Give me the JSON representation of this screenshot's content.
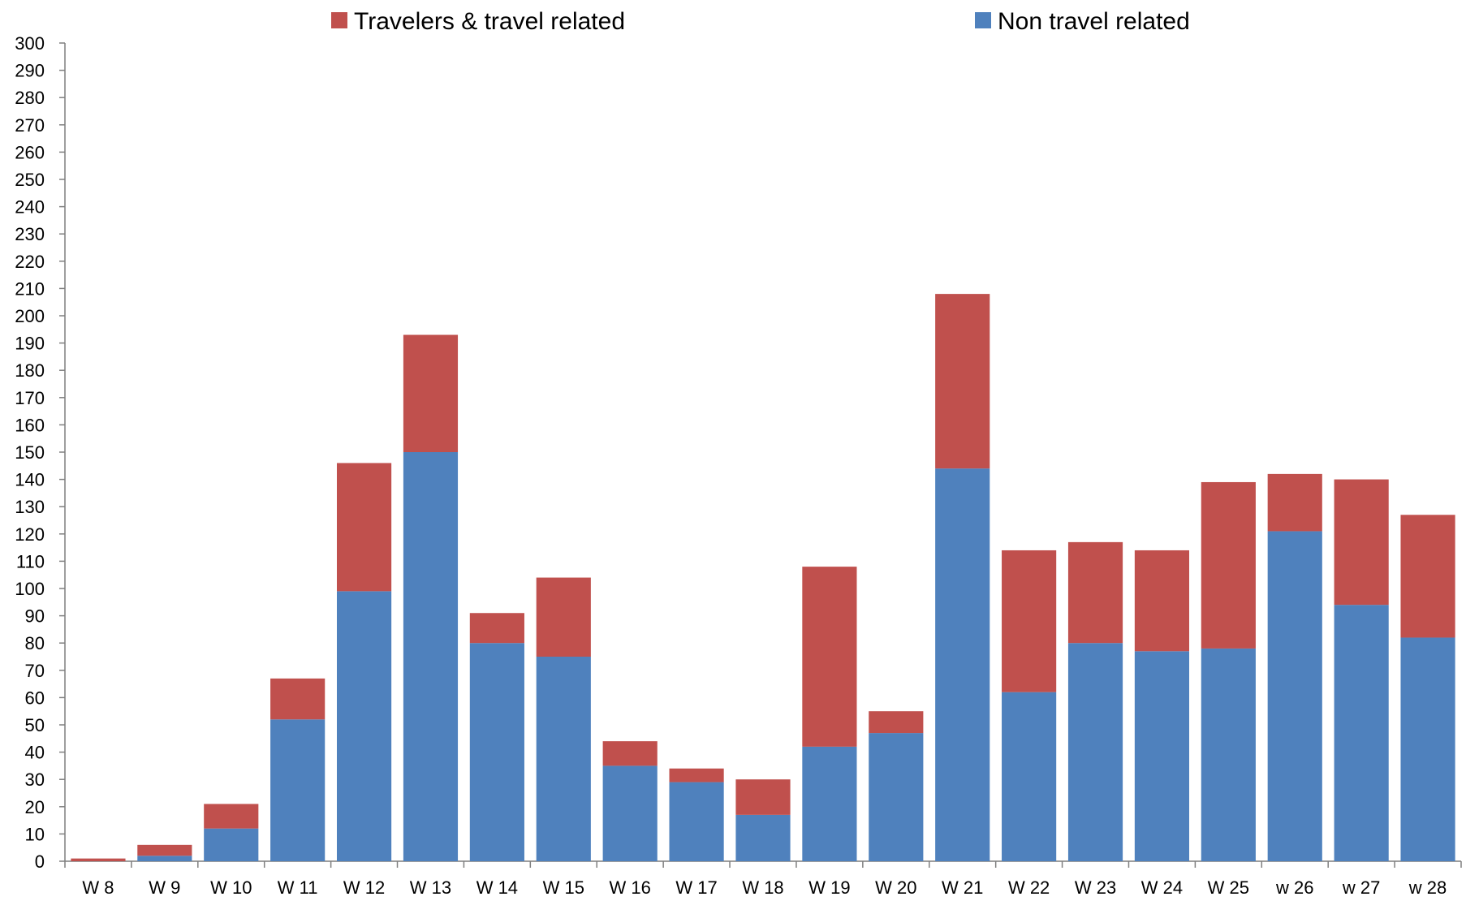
{
  "chart_data": {
    "type": "bar",
    "stacked": true,
    "title": "",
    "xlabel": "",
    "ylabel": "",
    "ylim": [
      0,
      300
    ],
    "y_tick_step": 10,
    "grid": false,
    "legend_position": "top",
    "categories": [
      "W 8",
      "W 9",
      "W 10",
      "W 11",
      "W 12",
      "W 13",
      "W 14",
      "W 15",
      "W 16",
      "W 17",
      "W 18",
      "W 19",
      "W 20",
      "W 21",
      "W 22",
      "W 23",
      "W 24",
      "W 25",
      "w 26",
      "w 27",
      "w 28"
    ],
    "series": [
      {
        "name": "Non travel related",
        "color": "#4F81BD",
        "values": [
          0,
          2,
          12,
          52,
          99,
          150,
          80,
          75,
          35,
          29,
          17,
          42,
          47,
          144,
          62,
          80,
          77,
          78,
          121,
          94,
          82
        ]
      },
      {
        "name": "Travelers & travel related",
        "color": "#C0504D",
        "values": [
          1,
          4,
          9,
          15,
          47,
          43,
          11,
          29,
          9,
          5,
          13,
          66,
          8,
          64,
          52,
          37,
          37,
          61,
          21,
          46,
          45
        ]
      }
    ],
    "legend_order": [
      "Travelers & travel related",
      "Non travel related"
    ]
  }
}
